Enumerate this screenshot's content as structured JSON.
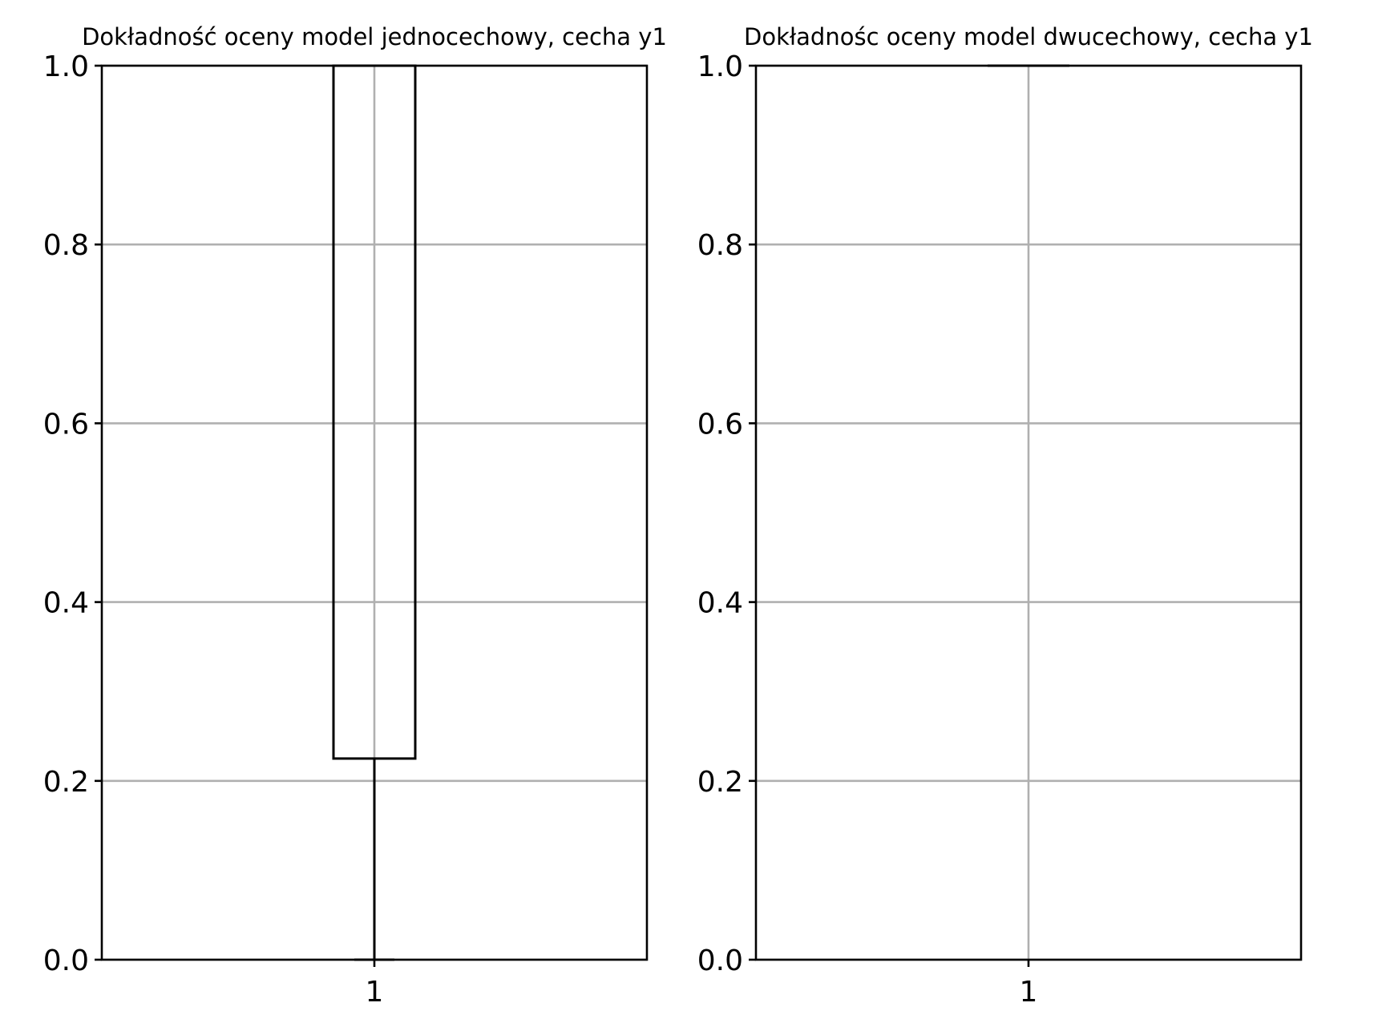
{
  "chart_data": [
    {
      "type": "boxplot",
      "title": "Dokładność oceny model jednocechowy, cecha y1",
      "xlabel": "",
      "ylabel": "",
      "categories": [
        "1"
      ],
      "ylim": [
        0,
        1
      ],
      "yticks": [
        "0.0",
        "0.2",
        "0.4",
        "0.6",
        "0.8",
        "1.0"
      ],
      "grid": true,
      "boxes": [
        {
          "category": "1",
          "whislo": 0.0,
          "q1": 0.225,
          "median": 1.0,
          "q3": 1.0,
          "whishi": 1.0
        }
      ]
    },
    {
      "type": "boxplot",
      "title": "Dokładnośc oceny model dwucechowy, cecha y1",
      "xlabel": "",
      "ylabel": "",
      "categories": [
        "1"
      ],
      "ylim": [
        0,
        1
      ],
      "yticks": [
        "0.0",
        "0.2",
        "0.4",
        "0.6",
        "0.8",
        "1.0"
      ],
      "grid": true,
      "boxes": [
        {
          "category": "1",
          "whislo": 1.0,
          "q1": 1.0,
          "median": 1.0,
          "q3": 1.0,
          "whishi": 1.0
        }
      ]
    }
  ]
}
